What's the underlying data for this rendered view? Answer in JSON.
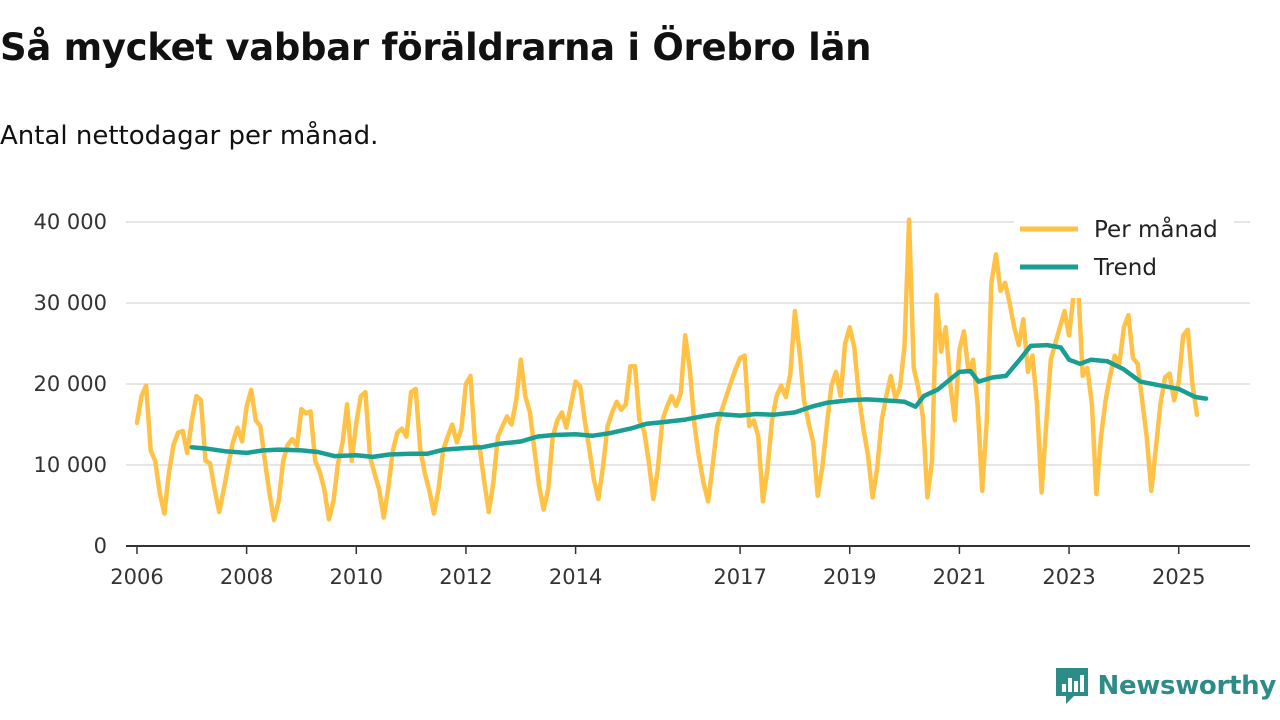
{
  "title": "Så mycket vabbar föräldrarna i Örebro län",
  "subtitle": "Antal nettodagar per månad.",
  "brand": "Newsworthy",
  "colors": {
    "monthly": "#ffc247",
    "trend": "#1a9e94",
    "grid": "#dddddd",
    "axis": "#333333",
    "brand": "#2d8c87"
  },
  "chart_data": {
    "type": "line",
    "title": "Så mycket vabbar föräldrarna i Örebro län",
    "subtitle": "Antal nettodagar per månad.",
    "xlabel": "",
    "ylabel": "",
    "xlim": [
      2005.8,
      2026.3
    ],
    "ylim": [
      0,
      40000
    ],
    "yticks": [
      0,
      10000,
      20000,
      30000,
      40000
    ],
    "ytick_labels": [
      "0",
      "10 000",
      "20 000",
      "30 000",
      "40 000"
    ],
    "xticks": [
      2006,
      2008,
      2010,
      2012,
      2014,
      2017,
      2019,
      2021,
      2023,
      2025
    ],
    "xtick_labels": [
      "2006",
      "2008",
      "2010",
      "2012",
      "2014",
      "2017",
      "2019",
      "2021",
      "2023",
      "2025"
    ],
    "grid": true,
    "legend_position": "top-right",
    "series": [
      {
        "name": "Per månad",
        "x_start": 2006.0,
        "x_step": 0.08333,
        "values": [
          15200,
          18500,
          19800,
          11800,
          10500,
          6500,
          4000,
          9000,
          12500,
          14000,
          14200,
          11500,
          15500,
          18500,
          18000,
          10500,
          10200,
          7000,
          4200,
          7000,
          10000,
          12800,
          14600,
          12900,
          17200,
          19300,
          15500,
          14800,
          10500,
          6500,
          3200,
          5500,
          10500,
          12500,
          13200,
          12300,
          16900,
          16400,
          16600,
          10500,
          9200,
          7000,
          3300,
          5500,
          10200,
          12800,
          17500,
          10500,
          15200,
          18500,
          19000,
          11000,
          9000,
          7000,
          3500,
          7200,
          11800,
          14000,
          14500,
          13500,
          19000,
          19400,
          12000,
          9000,
          6800,
          4000,
          7000,
          11800,
          13500,
          15000,
          12800,
          14500,
          20000,
          21000,
          12500,
          12200,
          8000,
          4200,
          7800,
          13500,
          14800,
          16000,
          15000,
          18000,
          23000,
          18500,
          16500,
          11800,
          7500,
          4500,
          7000,
          13500,
          15500,
          16500,
          14600,
          17500,
          20300,
          19700,
          15500,
          12000,
          8200,
          5800,
          9800,
          14800,
          16500,
          17800,
          16800,
          17500,
          22200,
          22200,
          15500,
          14200,
          10500,
          5800,
          9500,
          15500,
          17200,
          18500,
          17300,
          18800,
          26000,
          21800,
          15000,
          11000,
          7800,
          5500,
          10000,
          14800,
          16800,
          18500,
          20200,
          21800,
          23200,
          23500,
          14800,
          15500,
          13500,
          5500,
          9500,
          15500,
          18500,
          19800,
          18400,
          21200,
          29000,
          24000,
          18000,
          15200,
          12800,
          6200,
          9700,
          15000,
          19800,
          21500,
          18500,
          25000,
          27000,
          24500,
          18500,
          14500,
          11200,
          6000,
          9500,
          15500,
          18500,
          21000,
          18200,
          19600,
          24700,
          40300,
          22000,
          19500,
          16000,
          6000,
          10500,
          31000,
          24000,
          27000,
          20000,
          15500,
          24200,
          26500,
          21500,
          23000,
          17500,
          6800,
          15500,
          32500,
          36000,
          31500,
          32500,
          30000,
          27000,
          24800,
          28000,
          21500,
          23500,
          17500,
          6600,
          15000,
          23000,
          25000,
          27000,
          29000,
          26000,
          31000,
          32000,
          21000,
          22000,
          17500,
          6400,
          13500,
          18000,
          21000,
          23500,
          22500,
          27000,
          28500,
          23200,
          22500,
          18000,
          13500,
          6800,
          12000,
          17500,
          20800,
          21300,
          18000,
          20200,
          26000,
          26700,
          20000,
          16200
        ]
      },
      {
        "name": "Trend",
        "points": [
          [
            2007.0,
            12200
          ],
          [
            2007.3,
            12000
          ],
          [
            2007.6,
            11700
          ],
          [
            2008.0,
            11500
          ],
          [
            2008.3,
            11800
          ],
          [
            2008.6,
            11900
          ],
          [
            2009.0,
            11800
          ],
          [
            2009.3,
            11600
          ],
          [
            2009.6,
            11100
          ],
          [
            2010.0,
            11200
          ],
          [
            2010.3,
            11000
          ],
          [
            2010.6,
            11300
          ],
          [
            2011.0,
            11400
          ],
          [
            2011.3,
            11400
          ],
          [
            2011.6,
            11900
          ],
          [
            2012.0,
            12100
          ],
          [
            2012.3,
            12200
          ],
          [
            2012.6,
            12600
          ],
          [
            2013.0,
            12900
          ],
          [
            2013.3,
            13500
          ],
          [
            2013.6,
            13700
          ],
          [
            2014.0,
            13800
          ],
          [
            2014.3,
            13600
          ],
          [
            2014.6,
            13900
          ],
          [
            2015.0,
            14500
          ],
          [
            2015.3,
            15100
          ],
          [
            2015.6,
            15300
          ],
          [
            2016.0,
            15600
          ],
          [
            2016.3,
            16000
          ],
          [
            2016.6,
            16300
          ],
          [
            2017.0,
            16100
          ],
          [
            2017.3,
            16300
          ],
          [
            2017.6,
            16200
          ],
          [
            2018.0,
            16500
          ],
          [
            2018.3,
            17200
          ],
          [
            2018.6,
            17700
          ],
          [
            2019.0,
            18000
          ],
          [
            2019.3,
            18100
          ],
          [
            2019.6,
            18000
          ],
          [
            2020.0,
            17800
          ],
          [
            2020.2,
            17200
          ],
          [
            2020.35,
            18500
          ],
          [
            2020.6,
            19300
          ],
          [
            2021.0,
            21500
          ],
          [
            2021.2,
            21600
          ],
          [
            2021.35,
            20300
          ],
          [
            2021.6,
            20800
          ],
          [
            2021.85,
            21000
          ],
          [
            2022.1,
            23000
          ],
          [
            2022.3,
            24700
          ],
          [
            2022.6,
            24800
          ],
          [
            2022.85,
            24500
          ],
          [
            2023.0,
            23000
          ],
          [
            2023.2,
            22500
          ],
          [
            2023.4,
            23000
          ],
          [
            2023.7,
            22800
          ],
          [
            2024.0,
            21800
          ],
          [
            2024.3,
            20300
          ],
          [
            2024.6,
            19900
          ],
          [
            2025.0,
            19400
          ],
          [
            2025.3,
            18400
          ],
          [
            2025.5,
            18200
          ]
        ]
      }
    ]
  }
}
